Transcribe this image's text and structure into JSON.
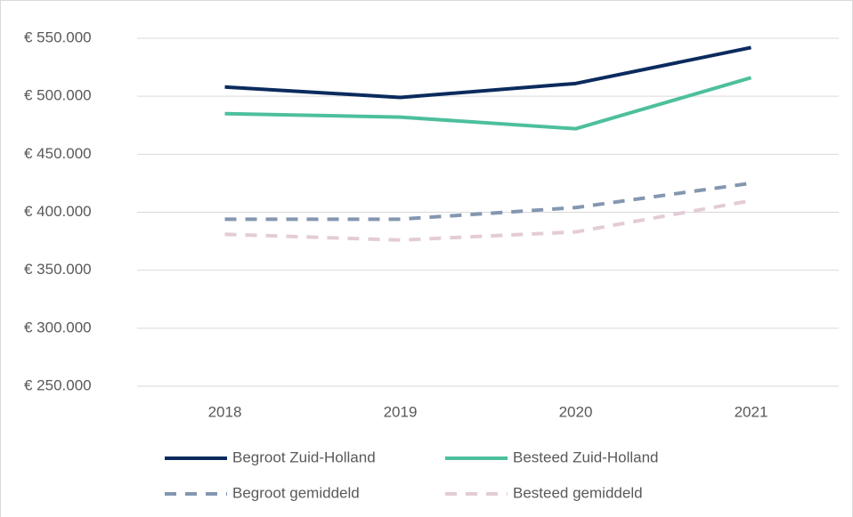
{
  "chart_data": {
    "type": "line",
    "categories": [
      "2018",
      "2019",
      "2020",
      "2021"
    ],
    "series": [
      {
        "name": "Begroot Zuid-Holland",
        "color": "#0b2b5e",
        "dashed": false,
        "values": [
          508000,
          499000,
          511000,
          542000
        ]
      },
      {
        "name": "Besteed Zuid-Holland",
        "color": "#4dbf9c",
        "dashed": false,
        "values": [
          485000,
          482000,
          472000,
          516000
        ]
      },
      {
        "name": "Begroot gemiddeld",
        "color": "#8497b0",
        "dashed": true,
        "values": [
          394000,
          394000,
          404000,
          425000
        ]
      },
      {
        "name": "Besteed gemiddeld",
        "color": "#e3ccd7",
        "dashed": true,
        "values": [
          381000,
          376000,
          383000,
          410000
        ]
      }
    ],
    "ylim": [
      250000,
      550000
    ],
    "yticks": [
      {
        "value": 250000,
        "label": "€ 250.000"
      },
      {
        "value": 300000,
        "label": "€ 300.000"
      },
      {
        "value": 350000,
        "label": "€ 350.000"
      },
      {
        "value": 400000,
        "label": "€ 400.000"
      },
      {
        "value": 450000,
        "label": "€ 450.000"
      },
      {
        "value": 500000,
        "label": "€ 500.000"
      },
      {
        "value": 550000,
        "label": "€ 550.000"
      }
    ],
    "grid": true,
    "legend": "bottom"
  }
}
